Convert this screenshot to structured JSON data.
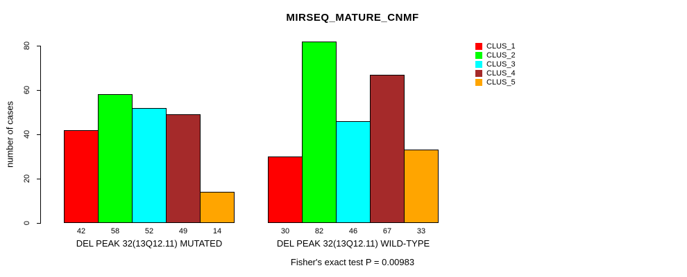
{
  "title": "MIRSEQ_MATURE_CNMF",
  "annotation": "Fisher's exact test P = 0.00983",
  "y_axis": {
    "label": "number of cases"
  },
  "legend": {
    "position": "top-right",
    "entries": [
      {
        "label": "CLUS_1",
        "color": "#FF0000"
      },
      {
        "label": "CLUS_2",
        "color": "#00FF00"
      },
      {
        "label": "CLUS_3",
        "color": "#00FFFF"
      },
      {
        "label": "CLUS_4",
        "color": "#A52A2A"
      },
      {
        "label": "CLUS_5",
        "color": "#FFA500"
      }
    ]
  },
  "chart_data": {
    "type": "bar",
    "title": "MIRSEQ_MATURE_CNMF",
    "ylabel": "number of cases",
    "xlabel": "",
    "ylim": [
      0,
      80
    ],
    "yticks": [
      0,
      20,
      40,
      60,
      80
    ],
    "grid": false,
    "legend_position": "top-right",
    "series_names": [
      "CLUS_1",
      "CLUS_2",
      "CLUS_3",
      "CLUS_4",
      "CLUS_5"
    ],
    "series_colors": [
      "#FF0000",
      "#00FF00",
      "#00FFFF",
      "#A52A2A",
      "#FFA500"
    ],
    "groups": [
      {
        "label": "DEL PEAK 32(13Q12.11) MUTATED",
        "values": [
          42,
          58,
          52,
          49,
          14
        ]
      },
      {
        "label": "DEL PEAK 32(13Q12.11) WILD-TYPE",
        "values": [
          30,
          82,
          46,
          67,
          33
        ]
      }
    ],
    "bar_value_labels": true,
    "annotation": "Fisher's exact test P = 0.00983"
  }
}
